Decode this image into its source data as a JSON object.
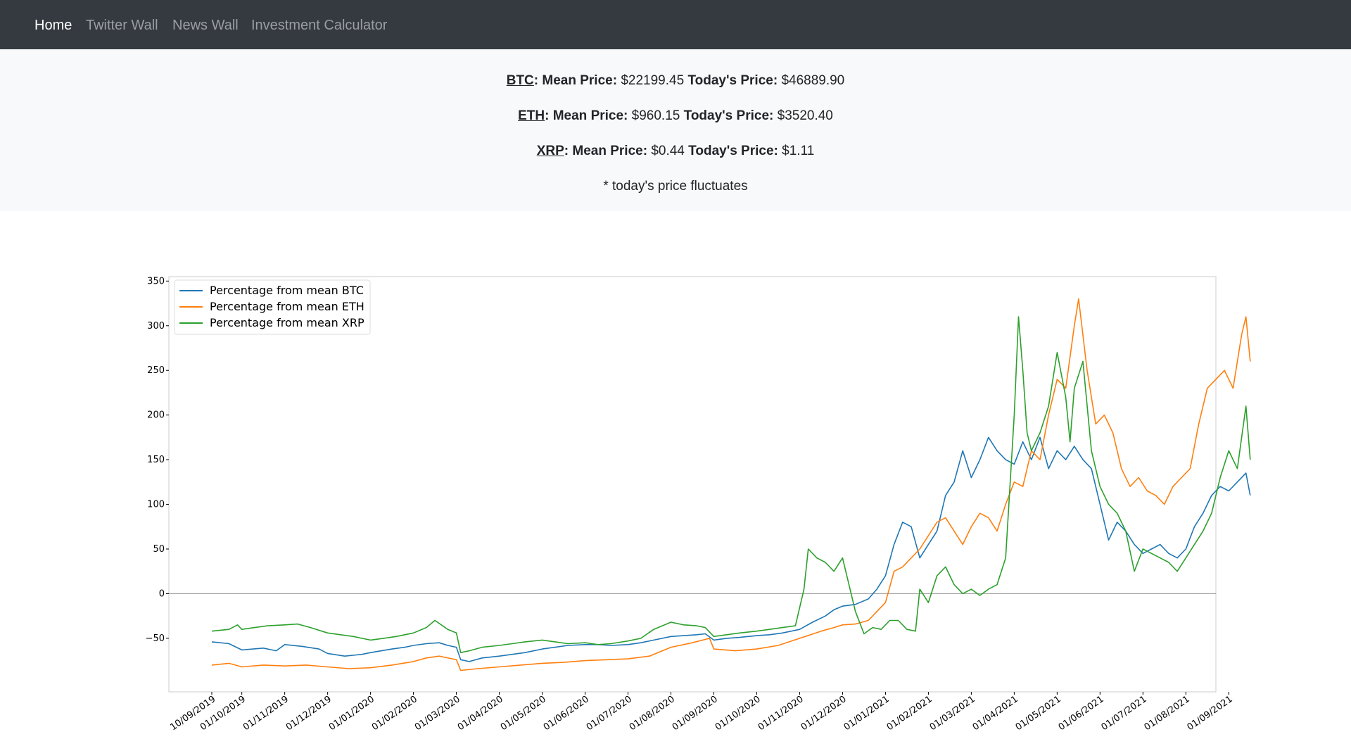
{
  "nav": {
    "items": [
      {
        "label": "Home",
        "active": true
      },
      {
        "label": "Twitter Wall",
        "active": false
      },
      {
        "label": "News Wall",
        "active": false
      },
      {
        "label": "Investment Calculator",
        "active": false
      }
    ]
  },
  "prices": {
    "labels": {
      "mean": "Mean Price:",
      "today": "Today's Price:"
    },
    "coins": [
      {
        "symbol": "BTC",
        "mean": "$22199.45",
        "today": "$46889.90"
      },
      {
        "symbol": "ETH",
        "mean": "$960.15",
        "today": "$3520.40"
      },
      {
        "symbol": "XRP",
        "mean": "$0.44",
        "today": "$1.11"
      }
    ],
    "note": "* today's price fluctuates"
  },
  "chart_data": {
    "type": "line",
    "title": "",
    "xlabel": "",
    "ylabel": "",
    "ylim": [
      -110,
      355
    ],
    "xlim": [
      -1.0,
      23.4
    ],
    "grid": false,
    "legend_position": "top-left",
    "yticks": [
      350,
      300,
      250,
      200,
      150,
      100,
      50,
      0,
      -50
    ],
    "ytick_labels": [
      "350",
      "300",
      "250",
      "200",
      "150",
      "100",
      "50",
      "0",
      "−50"
    ],
    "xticks": [
      "10/09/2019",
      "01/10/2019",
      "01/11/2019",
      "01/12/2019",
      "01/01/2020",
      "01/02/2020",
      "01/03/2020",
      "01/04/2020",
      "01/05/2020",
      "01/06/2020",
      "01/07/2020",
      "01/08/2020",
      "01/09/2020",
      "01/10/2020",
      "01/11/2020",
      "01/12/2020",
      "01/01/2021",
      "01/02/2021",
      "01/03/2021",
      "01/04/2021",
      "01/05/2021",
      "01/06/2021",
      "01/07/2021",
      "01/08/2021",
      "01/09/2021"
    ],
    "x_tick_positions": [
      0,
      0.7,
      1.7,
      2.7,
      3.7,
      4.7,
      5.7,
      6.7,
      7.7,
      8.7,
      9.7,
      10.7,
      11.7,
      12.7,
      13.7,
      14.7,
      15.7,
      16.7,
      17.7,
      18.7,
      19.7,
      20.7,
      21.7,
      22.7,
      23.7
    ],
    "zero_line": 0,
    "colors": {
      "BTC": "#1f77b4",
      "ETH": "#ff7f0e",
      "XRP": "#2ca02c",
      "zero": "#999999"
    },
    "series": [
      {
        "name": "Percentage from mean BTC",
        "color": "#1f77b4",
        "points": [
          [
            0.0,
            -54
          ],
          [
            0.4,
            -56
          ],
          [
            0.7,
            -63
          ],
          [
            1.2,
            -61
          ],
          [
            1.5,
            -64
          ],
          [
            1.7,
            -57
          ],
          [
            2.1,
            -59
          ],
          [
            2.5,
            -62
          ],
          [
            2.7,
            -67
          ],
          [
            3.1,
            -70
          ],
          [
            3.5,
            -68
          ],
          [
            3.7,
            -66
          ],
          [
            4.2,
            -62
          ],
          [
            4.5,
            -60
          ],
          [
            4.7,
            -58
          ],
          [
            5.0,
            -56
          ],
          [
            5.3,
            -55
          ],
          [
            5.5,
            -58
          ],
          [
            5.7,
            -60
          ],
          [
            5.8,
            -74
          ],
          [
            6.0,
            -76
          ],
          [
            6.3,
            -72
          ],
          [
            6.7,
            -70
          ],
          [
            7.0,
            -68
          ],
          [
            7.3,
            -66
          ],
          [
            7.7,
            -62
          ],
          [
            8.0,
            -60
          ],
          [
            8.3,
            -58
          ],
          [
            8.7,
            -57
          ],
          [
            9.0,
            -57
          ],
          [
            9.3,
            -58
          ],
          [
            9.7,
            -57
          ],
          [
            10.0,
            -55
          ],
          [
            10.3,
            -52
          ],
          [
            10.7,
            -48
          ],
          [
            11.0,
            -47
          ],
          [
            11.3,
            -46
          ],
          [
            11.5,
            -45
          ],
          [
            11.7,
            -52
          ],
          [
            12.0,
            -50
          ],
          [
            12.3,
            -49
          ],
          [
            12.7,
            -47
          ],
          [
            13.0,
            -46
          ],
          [
            13.3,
            -44
          ],
          [
            13.7,
            -40
          ],
          [
            14.0,
            -32
          ],
          [
            14.3,
            -25
          ],
          [
            14.5,
            -18
          ],
          [
            14.7,
            -14
          ],
          [
            15.0,
            -12
          ],
          [
            15.3,
            -6
          ],
          [
            15.5,
            5
          ],
          [
            15.7,
            20
          ],
          [
            15.9,
            55
          ],
          [
            16.1,
            80
          ],
          [
            16.3,
            75
          ],
          [
            16.5,
            40
          ],
          [
            16.7,
            55
          ],
          [
            16.9,
            70
          ],
          [
            17.1,
            110
          ],
          [
            17.3,
            125
          ],
          [
            17.5,
            160
          ],
          [
            17.7,
            130
          ],
          [
            17.9,
            150
          ],
          [
            18.1,
            175
          ],
          [
            18.3,
            160
          ],
          [
            18.5,
            150
          ],
          [
            18.7,
            145
          ],
          [
            18.9,
            170
          ],
          [
            19.1,
            150
          ],
          [
            19.3,
            175
          ],
          [
            19.5,
            140
          ],
          [
            19.7,
            160
          ],
          [
            19.9,
            150
          ],
          [
            20.1,
            165
          ],
          [
            20.3,
            150
          ],
          [
            20.5,
            140
          ],
          [
            20.7,
            100
          ],
          [
            20.9,
            60
          ],
          [
            21.1,
            80
          ],
          [
            21.3,
            70
          ],
          [
            21.5,
            55
          ],
          [
            21.7,
            45
          ],
          [
            21.9,
            50
          ],
          [
            22.1,
            55
          ],
          [
            22.3,
            45
          ],
          [
            22.5,
            40
          ],
          [
            22.7,
            50
          ],
          [
            22.9,
            75
          ],
          [
            23.1,
            90
          ],
          [
            23.3,
            110
          ],
          [
            23.5,
            120
          ],
          [
            23.7,
            115
          ],
          [
            23.9,
            125
          ],
          [
            24.1,
            135
          ],
          [
            24.2,
            110
          ]
        ]
      },
      {
        "name": "Percentage from mean ETH",
        "color": "#ff7f0e",
        "points": [
          [
            0.0,
            -80
          ],
          [
            0.4,
            -78
          ],
          [
            0.7,
            -82
          ],
          [
            1.2,
            -80
          ],
          [
            1.7,
            -81
          ],
          [
            2.2,
            -80
          ],
          [
            2.7,
            -82
          ],
          [
            3.2,
            -84
          ],
          [
            3.7,
            -83
          ],
          [
            4.2,
            -80
          ],
          [
            4.7,
            -76
          ],
          [
            5.0,
            -72
          ],
          [
            5.3,
            -70
          ],
          [
            5.7,
            -74
          ],
          [
            5.8,
            -86
          ],
          [
            6.2,
            -84
          ],
          [
            6.7,
            -82
          ],
          [
            7.2,
            -80
          ],
          [
            7.7,
            -78
          ],
          [
            8.2,
            -77
          ],
          [
            8.7,
            -75
          ],
          [
            9.2,
            -74
          ],
          [
            9.7,
            -73
          ],
          [
            10.2,
            -70
          ],
          [
            10.7,
            -60
          ],
          [
            11.2,
            -55
          ],
          [
            11.6,
            -50
          ],
          [
            11.7,
            -62
          ],
          [
            12.2,
            -64
          ],
          [
            12.7,
            -62
          ],
          [
            13.2,
            -58
          ],
          [
            13.7,
            -50
          ],
          [
            14.2,
            -42
          ],
          [
            14.5,
            -38
          ],
          [
            14.7,
            -35
          ],
          [
            15.0,
            -34
          ],
          [
            15.3,
            -30
          ],
          [
            15.5,
            -20
          ],
          [
            15.7,
            -10
          ],
          [
            15.9,
            25
          ],
          [
            16.1,
            30
          ],
          [
            16.3,
            40
          ],
          [
            16.5,
            50
          ],
          [
            16.7,
            65
          ],
          [
            16.9,
            80
          ],
          [
            17.1,
            85
          ],
          [
            17.3,
            70
          ],
          [
            17.5,
            55
          ],
          [
            17.7,
            75
          ],
          [
            17.9,
            90
          ],
          [
            18.1,
            85
          ],
          [
            18.3,
            70
          ],
          [
            18.5,
            100
          ],
          [
            18.7,
            125
          ],
          [
            18.9,
            120
          ],
          [
            19.1,
            160
          ],
          [
            19.3,
            150
          ],
          [
            19.5,
            200
          ],
          [
            19.7,
            240
          ],
          [
            19.9,
            230
          ],
          [
            20.1,
            300
          ],
          [
            20.2,
            330
          ],
          [
            20.4,
            250
          ],
          [
            20.6,
            190
          ],
          [
            20.8,
            200
          ],
          [
            21.0,
            180
          ],
          [
            21.2,
            140
          ],
          [
            21.4,
            120
          ],
          [
            21.6,
            130
          ],
          [
            21.8,
            115
          ],
          [
            22.0,
            110
          ],
          [
            22.2,
            100
          ],
          [
            22.4,
            120
          ],
          [
            22.6,
            130
          ],
          [
            22.8,
            140
          ],
          [
            23.0,
            190
          ],
          [
            23.2,
            230
          ],
          [
            23.4,
            240
          ],
          [
            23.6,
            250
          ],
          [
            23.8,
            230
          ],
          [
            24.0,
            290
          ],
          [
            24.1,
            310
          ],
          [
            24.2,
            260
          ]
        ]
      },
      {
        "name": "Percentage from mean XRP",
        "color": "#2ca02c",
        "points": [
          [
            0.0,
            -42
          ],
          [
            0.4,
            -40
          ],
          [
            0.6,
            -35
          ],
          [
            0.7,
            -40
          ],
          [
            1.0,
            -38
          ],
          [
            1.3,
            -36
          ],
          [
            1.7,
            -35
          ],
          [
            2.0,
            -34
          ],
          [
            2.3,
            -38
          ],
          [
            2.7,
            -44
          ],
          [
            3.0,
            -46
          ],
          [
            3.3,
            -48
          ],
          [
            3.7,
            -52
          ],
          [
            4.0,
            -50
          ],
          [
            4.3,
            -48
          ],
          [
            4.7,
            -44
          ],
          [
            5.0,
            -38
          ],
          [
            5.2,
            -30
          ],
          [
            5.5,
            -40
          ],
          [
            5.7,
            -44
          ],
          [
            5.8,
            -66
          ],
          [
            6.0,
            -64
          ],
          [
            6.3,
            -60
          ],
          [
            6.7,
            -58
          ],
          [
            7.0,
            -56
          ],
          [
            7.3,
            -54
          ],
          [
            7.7,
            -52
          ],
          [
            8.0,
            -54
          ],
          [
            8.3,
            -56
          ],
          [
            8.7,
            -55
          ],
          [
            9.0,
            -57
          ],
          [
            9.3,
            -56
          ],
          [
            9.7,
            -53
          ],
          [
            10.0,
            -50
          ],
          [
            10.3,
            -40
          ],
          [
            10.7,
            -32
          ],
          [
            11.0,
            -35
          ],
          [
            11.3,
            -36
          ],
          [
            11.5,
            -38
          ],
          [
            11.7,
            -48
          ],
          [
            12.0,
            -46
          ],
          [
            12.3,
            -44
          ],
          [
            12.7,
            -42
          ],
          [
            13.0,
            -40
          ],
          [
            13.3,
            -38
          ],
          [
            13.6,
            -36
          ],
          [
            13.8,
            5
          ],
          [
            13.9,
            50
          ],
          [
            14.1,
            40
          ],
          [
            14.3,
            35
          ],
          [
            14.5,
            25
          ],
          [
            14.7,
            40
          ],
          [
            14.8,
            20
          ],
          [
            15.0,
            -20
          ],
          [
            15.2,
            -45
          ],
          [
            15.4,
            -38
          ],
          [
            15.6,
            -40
          ],
          [
            15.8,
            -30
          ],
          [
            16.0,
            -30
          ],
          [
            16.2,
            -40
          ],
          [
            16.4,
            -42
          ],
          [
            16.5,
            5
          ],
          [
            16.7,
            -10
          ],
          [
            16.9,
            20
          ],
          [
            17.1,
            30
          ],
          [
            17.3,
            10
          ],
          [
            17.5,
            0
          ],
          [
            17.7,
            5
          ],
          [
            17.9,
            -2
          ],
          [
            18.1,
            5
          ],
          [
            18.3,
            10
          ],
          [
            18.5,
            40
          ],
          [
            18.6,
            120
          ],
          [
            18.7,
            200
          ],
          [
            18.8,
            310
          ],
          [
            18.9,
            250
          ],
          [
            19.0,
            180
          ],
          [
            19.1,
            160
          ],
          [
            19.3,
            180
          ],
          [
            19.5,
            210
          ],
          [
            19.7,
            270
          ],
          [
            19.9,
            220
          ],
          [
            20.0,
            170
          ],
          [
            20.1,
            230
          ],
          [
            20.3,
            260
          ],
          [
            20.5,
            160
          ],
          [
            20.7,
            120
          ],
          [
            20.9,
            100
          ],
          [
            21.1,
            90
          ],
          [
            21.3,
            70
          ],
          [
            21.5,
            25
          ],
          [
            21.7,
            50
          ],
          [
            21.9,
            45
          ],
          [
            22.1,
            40
          ],
          [
            22.3,
            35
          ],
          [
            22.5,
            25
          ],
          [
            22.7,
            40
          ],
          [
            22.9,
            55
          ],
          [
            23.1,
            70
          ],
          [
            23.3,
            90
          ],
          [
            23.5,
            130
          ],
          [
            23.7,
            160
          ],
          [
            23.9,
            140
          ],
          [
            24.1,
            210
          ],
          [
            24.2,
            150
          ]
        ]
      }
    ]
  }
}
